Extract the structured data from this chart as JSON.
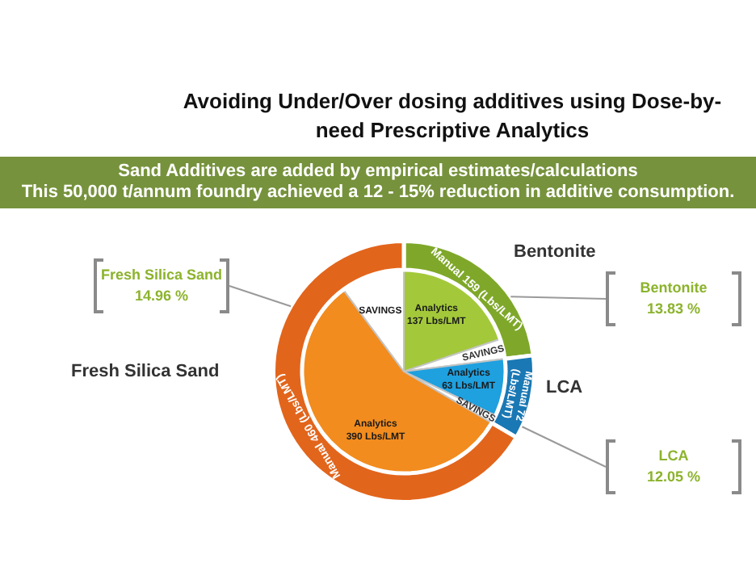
{
  "chart_data": {
    "type": "donut",
    "title": "Avoiding Under/Over dosing additives using Dose-by-need Prescriptive Analytics",
    "subtitle": "Sand Additives are  added by empirical estimates/calculations\nThis 50,000 t/annum foundry achieved a 12 - 15% reduction in additive consumption.",
    "categories": [
      "Bentonite",
      null,
      "LCA",
      null,
      "Fresh Silica Sand",
      null
    ],
    "series": [
      {
        "values": [
          159,
          null,
          72,
          null,
          460,
          null
        ],
        "colors": [
          "#7fa82a",
          "#ffffff",
          "#1a78b4",
          "#ffffff",
          "#e2651c",
          "#ffffff"
        ],
        "value_labels": [
          "Manual 159 (Lbs/LMT)",
          null,
          "Manual 72 (Lbs/LMT)",
          null,
          "Manual 460 (Lbs/LMT)",
          null
        ]
      },
      {
        "values": [
          137,
          22,
          63,
          9,
          390,
          70
        ],
        "colors": [
          "#a3c93a",
          "#ffffff",
          "#1fa0df",
          "#ffffff",
          "#f28c1e",
          "#ffffff"
        ],
        "value_labels": [
          "Analytics\n137 Lbs/LMT",
          "SAVINGS",
          "Analytics\n63 Lbs/LMT",
          "SAVINGS",
          "Analytics\n390 Lbs/LMT",
          "SAVINGS"
        ]
      }
    ],
    "annotations": [
      "Bentonite\n13.83 %",
      "LCA\n12.05 %",
      "Fresh Silica Sand\n14.96 %"
    ]
  }
}
